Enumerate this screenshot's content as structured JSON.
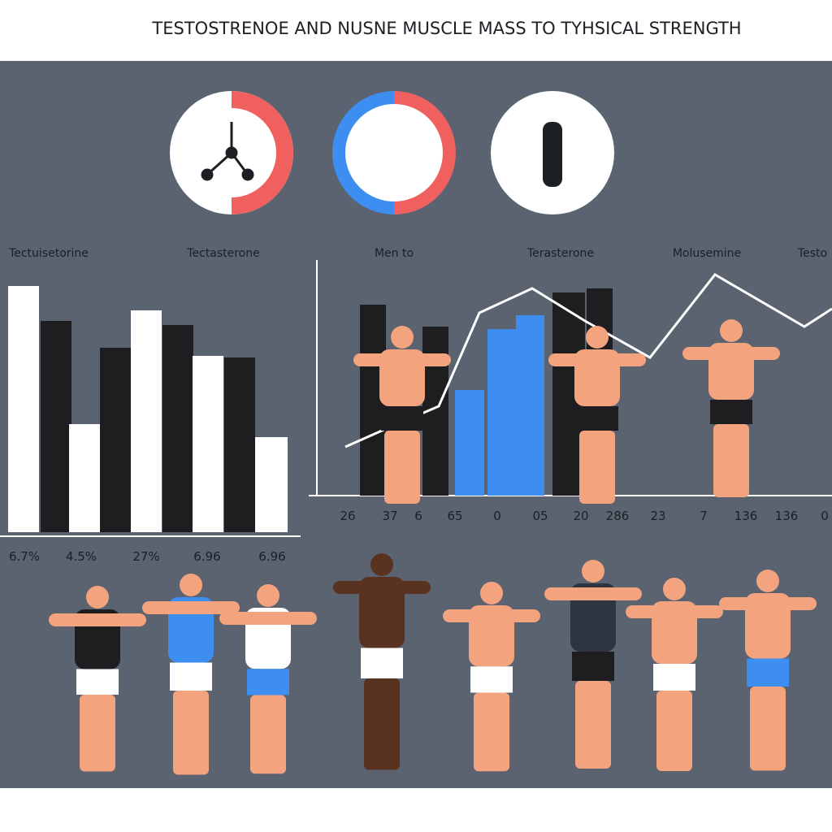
{
  "header": {
    "title": "TESTOSTRENOE AND NUSNE MUSCLE  MASS TO TYHSICAL STRENGTH"
  },
  "labels": [
    "Tectuisetorine",
    "Tectasterone",
    "Men to",
    "Terasterone",
    "Molusemine",
    "Testo"
  ],
  "left_numbers": [
    "6.7%",
    "4.5%",
    "27%",
    "6.96",
    "6.96"
  ],
  "right_numbers": [
    "26",
    "37",
    "6",
    "65",
    "0",
    "05",
    "20",
    "286",
    "23",
    "7",
    "136",
    "136",
    "0"
  ]
}
